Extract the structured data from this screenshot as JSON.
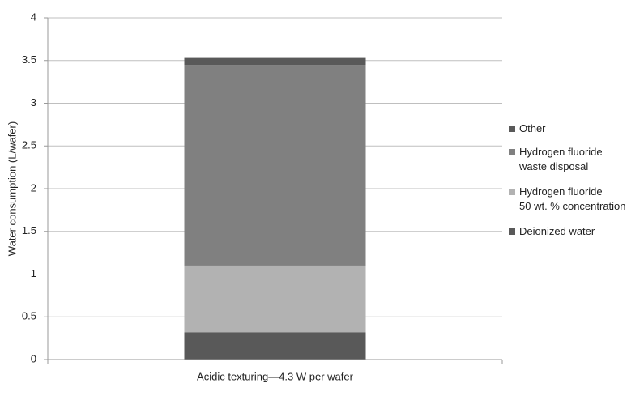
{
  "chart_data": {
    "type": "stacked_bar",
    "categories": [
      "Acidic texturing—4.3 W per wafer"
    ],
    "y_label": "Water consumption (L/wafer)",
    "series": [
      {
        "name": "Deionized water",
        "color": "#595959",
        "values": [
          0.32
        ]
      },
      {
        "name": "Hydrogen fluoride\n50 wt. % concentration",
        "color": "#b2b2b2",
        "values": [
          0.78
        ]
      },
      {
        "name": "Hydrogen fluoride\nwaste disposal",
        "color": "#808080",
        "values": [
          2.35
        ]
      },
      {
        "name": "Other",
        "color": "#595959",
        "values": [
          0.08
        ]
      }
    ],
    "ylim": [
      0,
      4
    ],
    "yticks": [
      0,
      0.5,
      1,
      1.5,
      2,
      2.5,
      3,
      3.5,
      4
    ],
    "grid": true,
    "legend": "right"
  }
}
